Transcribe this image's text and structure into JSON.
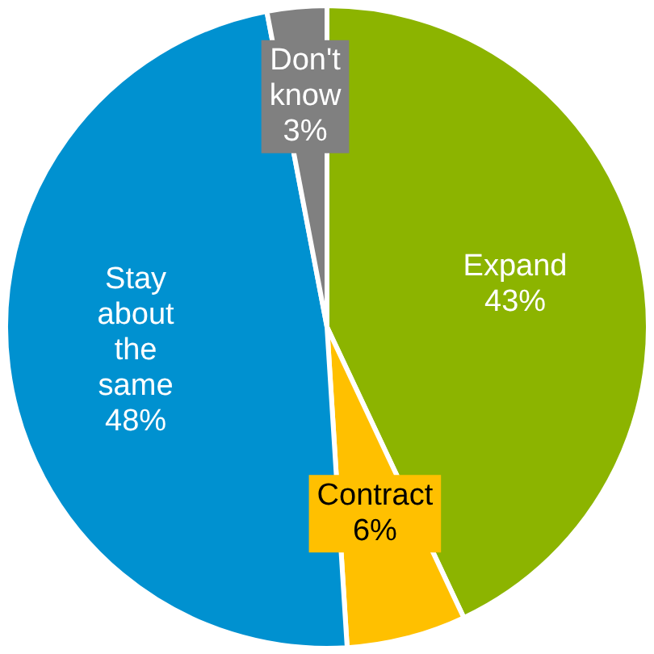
{
  "chart_data": {
    "type": "pie",
    "categories": [
      "Expand",
      "Contract",
      "Stay about the same",
      "Don't know"
    ],
    "values": [
      43,
      6,
      48,
      3
    ],
    "colors": [
      "#8cb400",
      "#ffc000",
      "#0091d0",
      "#808080"
    ],
    "value_labels": [
      "43%",
      "6%",
      "48%",
      "3%"
    ],
    "legend": false
  }
}
